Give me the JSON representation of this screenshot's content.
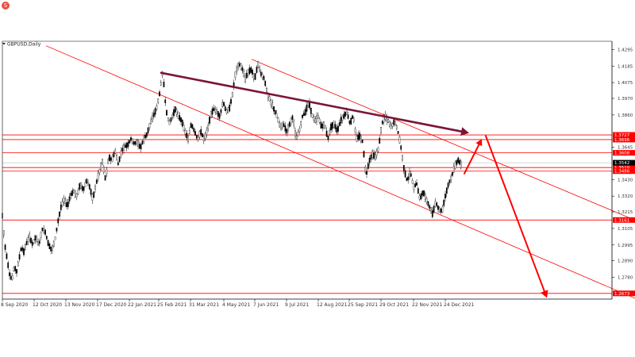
{
  "app": {
    "logo_icon": "app-logo-icon",
    "logo_letter": "S",
    "caption": "........"
  },
  "chart": {
    "symbol_label": "GBPUSD,Daily",
    "colors": {
      "candle": "#000000",
      "level_line": "#ff0000",
      "channel_line": "#ff0000",
      "trend_arrow": "#7b1538",
      "projection_arrow": "#ff0000",
      "tag_bg": "#ff0000",
      "current_tag_bg": "#000000",
      "axis": "#000000"
    }
  },
  "chart_data": {
    "type": "candlestick",
    "symbol": "GBPUSD,Daily",
    "x_ticks": [
      "8 Sep 2020",
      "12 Oct 2020",
      "13 Nov 2020",
      "17 Dec 2020",
      "22 Jan 2021",
      "25 Feb 2021",
      "31 Mar 2021",
      "4 May 2021",
      "7 Jun 2021",
      "9 Jul 2021",
      "12 Aug 2021",
      "25 Sep 2021",
      "29 Oct 2021",
      "22 Nov 2021",
      "24 Dec 2021"
    ],
    "y_ticks": [
      "1.4295",
      "1.4185",
      "1.4075",
      "1.3970",
      "1.3860",
      "1.3645",
      "1.3430",
      "1.3320",
      "1.3215",
      "1.3105",
      "1.2995",
      "1.2890",
      "1.2780"
    ],
    "ylim": [
      1.2635,
      1.435
    ],
    "levels": [
      {
        "label": "1.3727",
        "value": 1.3727
      },
      {
        "label": "1.3696",
        "value": 1.3696
      },
      {
        "label": "1.3608",
        "value": 1.3608
      },
      {
        "label": "1.3510",
        "value": 1.351
      },
      {
        "label": "1.3486",
        "value": 1.3486
      },
      {
        "label": "1.3161",
        "value": 1.3161
      },
      {
        "label": "1.2673",
        "value": 1.2673
      }
    ],
    "current_price": {
      "label": "1.3542",
      "value": 1.3542
    },
    "candle_path": [
      [
        0,
        1.319
      ],
      [
        3,
        1.3
      ],
      [
        6,
        1.29
      ],
      [
        9,
        1.28
      ],
      [
        12,
        1.276
      ],
      [
        15,
        1.285
      ],
      [
        18,
        1.282
      ],
      [
        21,
        1.29
      ],
      [
        24,
        1.298
      ],
      [
        27,
        1.295
      ],
      [
        30,
        1.3
      ],
      [
        34,
        1.305
      ],
      [
        38,
        1.3
      ],
      [
        42,
        1.305
      ],
      [
        46,
        1.299
      ],
      [
        50,
        1.31
      ],
      [
        54,
        1.308
      ],
      [
        58,
        1.3
      ],
      [
        62,
        1.296
      ],
      [
        66,
        1.302
      ],
      [
        70,
        1.315
      ],
      [
        74,
        1.325
      ],
      [
        78,
        1.33
      ],
      [
        82,
        1.325
      ],
      [
        86,
        1.333
      ],
      [
        90,
        1.335
      ],
      [
        94,
        1.332
      ],
      [
        98,
        1.34
      ],
      [
        102,
        1.336
      ],
      [
        106,
        1.342
      ],
      [
        110,
        1.338
      ],
      [
        114,
        1.33
      ],
      [
        118,
        1.34
      ],
      [
        122,
        1.348
      ],
      [
        126,
        1.355
      ],
      [
        130,
        1.343
      ],
      [
        134,
        1.358
      ],
      [
        138,
        1.356
      ],
      [
        142,
        1.362
      ],
      [
        146,
        1.353
      ],
      [
        150,
        1.362
      ],
      [
        154,
        1.365
      ],
      [
        158,
        1.366
      ],
      [
        162,
        1.37
      ],
      [
        166,
        1.367
      ],
      [
        170,
        1.368
      ],
      [
        174,
        1.364
      ],
      [
        178,
        1.37
      ],
      [
        182,
        1.373
      ],
      [
        186,
        1.38
      ],
      [
        190,
        1.385
      ],
      [
        194,
        1.39
      ],
      [
        198,
        1.4
      ],
      [
        202,
        1.415
      ],
      [
        206,
        1.39
      ],
      [
        210,
        1.38
      ],
      [
        214,
        1.385
      ],
      [
        218,
        1.39
      ],
      [
        222,
        1.385
      ],
      [
        226,
        1.382
      ],
      [
        230,
        1.375
      ],
      [
        234,
        1.37
      ],
      [
        238,
        1.38
      ],
      [
        242,
        1.375
      ],
      [
        246,
        1.37
      ],
      [
        250,
        1.375
      ],
      [
        254,
        1.37
      ],
      [
        258,
        1.375
      ],
      [
        262,
        1.385
      ],
      [
        266,
        1.39
      ],
      [
        270,
        1.388
      ],
      [
        274,
        1.385
      ],
      [
        278,
        1.395
      ],
      [
        282,
        1.388
      ],
      [
        286,
        1.39
      ],
      [
        290,
        1.4
      ],
      [
        294,
        1.415
      ],
      [
        298,
        1.42
      ],
      [
        302,
        1.417
      ],
      [
        306,
        1.41
      ],
      [
        310,
        1.415
      ],
      [
        314,
        1.416
      ],
      [
        318,
        1.41
      ],
      [
        322,
        1.42
      ],
      [
        326,
        1.413
      ],
      [
        330,
        1.41
      ],
      [
        334,
        1.4
      ],
      [
        338,
        1.395
      ],
      [
        342,
        1.39
      ],
      [
        346,
        1.385
      ],
      [
        350,
        1.378
      ],
      [
        354,
        1.38
      ],
      [
        358,
        1.375
      ],
      [
        362,
        1.38
      ],
      [
        366,
        1.385
      ],
      [
        370,
        1.37
      ],
      [
        374,
        1.375
      ],
      [
        378,
        1.385
      ],
      [
        382,
        1.388
      ],
      [
        386,
        1.395
      ],
      [
        390,
        1.386
      ],
      [
        394,
        1.382
      ],
      [
        398,
        1.385
      ],
      [
        402,
        1.378
      ],
      [
        406,
        1.38
      ],
      [
        410,
        1.37
      ],
      [
        414,
        1.378
      ],
      [
        418,
        1.38
      ],
      [
        422,
        1.375
      ],
      [
        426,
        1.382
      ],
      [
        430,
        1.385
      ],
      [
        434,
        1.388
      ],
      [
        438,
        1.38
      ],
      [
        442,
        1.386
      ],
      [
        446,
        1.37
      ],
      [
        450,
        1.372
      ],
      [
        454,
        1.368
      ],
      [
        458,
        1.345
      ],
      [
        462,
        1.355
      ],
      [
        466,
        1.36
      ],
      [
        470,
        1.358
      ],
      [
        474,
        1.364
      ],
      [
        478,
        1.38
      ],
      [
        482,
        1.385
      ],
      [
        486,
        1.382
      ],
      [
        490,
        1.378
      ],
      [
        494,
        1.382
      ],
      [
        498,
        1.376
      ],
      [
        502,
        1.365
      ],
      [
        506,
        1.35
      ],
      [
        510,
        1.342
      ],
      [
        514,
        1.348
      ],
      [
        518,
        1.338
      ],
      [
        522,
        1.34
      ],
      [
        526,
        1.33
      ],
      [
        530,
        1.335
      ],
      [
        534,
        1.33
      ],
      [
        538,
        1.325
      ],
      [
        542,
        1.32
      ],
      [
        546,
        1.328
      ],
      [
        550,
        1.323
      ],
      [
        554,
        1.322
      ],
      [
        558,
        1.332
      ],
      [
        562,
        1.34
      ],
      [
        566,
        1.345
      ],
      [
        570,
        1.352
      ],
      [
        574,
        1.356
      ],
      [
        578,
        1.353
      ]
    ],
    "drawings": {
      "channel_upper": [
        [
          314,
          1.423
        ],
        [
          800,
          1.316
        ]
      ],
      "channel_lower": [
        [
          55,
          1.432
        ],
        [
          800,
          1.264
        ]
      ],
      "trend_arrow": [
        [
          200,
          1.414
        ],
        [
          588,
          1.374
        ]
      ],
      "projection_arrow_up": [
        [
          582,
          1.347
        ],
        [
          604,
          1.37
        ]
      ],
      "projection_arrow_down": [
        [
          609,
          1.372
        ],
        [
          686,
          1.2643
        ]
      ]
    }
  }
}
